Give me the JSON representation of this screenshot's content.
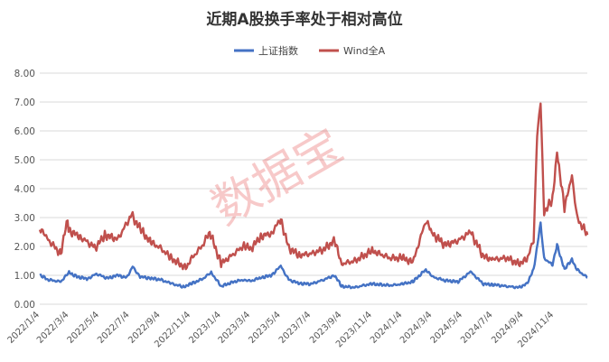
{
  "chart_data": {
    "type": "line",
    "title": "近期A股换手率处于相对高位",
    "xlabel": "",
    "ylabel": "",
    "ylim": [
      0,
      8
    ],
    "yticks": [
      "0.00",
      "1.00",
      "2.00",
      "3.00",
      "4.00",
      "5.00",
      "6.00",
      "7.00",
      "8.00"
    ],
    "x_ticks": [
      "2022/1/4",
      "2022/3/4",
      "2022/5/4",
      "2022/7/4",
      "2022/9/4",
      "2022/11/4",
      "2023/1/4",
      "2023/3/4",
      "2023/5/4",
      "2023/7/4",
      "2023/9/4",
      "2023/11/4",
      "2024/1/4",
      "2024/3/4",
      "2024/5/4",
      "2024/7/4",
      "2024/9/4",
      "2024/11/4"
    ],
    "x_range": [
      "2022/1/4",
      "2025/1/10"
    ],
    "grid": "horizontal",
    "legend": "top-center",
    "watermark": "数据宝",
    "series": [
      {
        "name": "上证指数",
        "color": "#4472c4",
        "points": [
          [
            "2022/1/4",
            1.02
          ],
          [
            "2022/1/20",
            0.85
          ],
          [
            "2022/2/15",
            0.78
          ],
          [
            "2022/3/4",
            1.1
          ],
          [
            "2022/3/20",
            0.95
          ],
          [
            "2022/4/10",
            0.88
          ],
          [
            "2022/4/28",
            1.05
          ],
          [
            "2022/5/20",
            0.9
          ],
          [
            "2022/6/10",
            1.0
          ],
          [
            "2022/6/28",
            0.92
          ],
          [
            "2022/7/10",
            1.3
          ],
          [
            "2022/7/25",
            0.95
          ],
          [
            "2022/8/15",
            0.9
          ],
          [
            "2022/9/4",
            0.85
          ],
          [
            "2022/9/25",
            0.72
          ],
          [
            "2022/10/20",
            0.6
          ],
          [
            "2022/11/4",
            0.7
          ],
          [
            "2022/11/28",
            0.88
          ],
          [
            "2022/12/15",
            1.1
          ],
          [
            "2023/1/4",
            0.62
          ],
          [
            "2023/1/30",
            0.78
          ],
          [
            "2023/2/20",
            0.85
          ],
          [
            "2023/3/4",
            0.8
          ],
          [
            "2023/3/25",
            0.92
          ],
          [
            "2023/4/15",
            1.0
          ],
          [
            "2023/5/4",
            1.32
          ],
          [
            "2023/5/20",
            0.85
          ],
          [
            "2023/6/10",
            0.72
          ],
          [
            "2023/7/4",
            0.7
          ],
          [
            "2023/7/30",
            0.85
          ],
          [
            "2023/8/20",
            1.0
          ],
          [
            "2023/9/4",
            0.62
          ],
          [
            "2023/9/30",
            0.58
          ],
          [
            "2023/10/20",
            0.66
          ],
          [
            "2023/11/4",
            0.7
          ],
          [
            "2023/12/10",
            0.65
          ],
          [
            "2024/1/4",
            0.7
          ],
          [
            "2024/1/25",
            0.78
          ],
          [
            "2024/2/20",
            1.2
          ],
          [
            "2024/3/4",
            0.95
          ],
          [
            "2024/3/30",
            0.82
          ],
          [
            "2024/4/25",
            0.78
          ],
          [
            "2024/5/20",
            1.12
          ],
          [
            "2024/6/15",
            0.7
          ],
          [
            "2024/7/4",
            0.68
          ],
          [
            "2024/8/1",
            0.62
          ],
          [
            "2024/8/25",
            0.58
          ],
          [
            "2024/9/10",
            0.7
          ],
          [
            "2024/9/24",
            1.2
          ],
          [
            "2024/10/8",
            2.8
          ],
          [
            "2024/10/15",
            1.6
          ],
          [
            "2024/11/1",
            1.35
          ],
          [
            "2024/11/10",
            2.05
          ],
          [
            "2024/11/25",
            1.2
          ],
          [
            "2024/12/10",
            1.55
          ],
          [
            "2024/12/20",
            1.2
          ],
          [
            "2025/1/10",
            0.92
          ]
        ]
      },
      {
        "name": "Wind全A",
        "color": "#c0504d",
        "points": [
          [
            "2022/1/4",
            2.65
          ],
          [
            "2022/1/15",
            2.35
          ],
          [
            "2022/2/15",
            1.75
          ],
          [
            "2022/3/1",
            2.95
          ],
          [
            "2022/3/4",
            2.55
          ],
          [
            "2022/3/25",
            2.35
          ],
          [
            "2022/4/26",
            1.95
          ],
          [
            "2022/5/15",
            2.4
          ],
          [
            "2022/6/10",
            2.25
          ],
          [
            "2022/7/8",
            3.1
          ],
          [
            "2022/7/25",
            2.6
          ],
          [
            "2022/8/15",
            2.15
          ],
          [
            "2022/9/4",
            1.95
          ],
          [
            "2022/9/25",
            1.6
          ],
          [
            "2022/10/25",
            1.25
          ],
          [
            "2022/11/4",
            1.55
          ],
          [
            "2022/11/28",
            2.05
          ],
          [
            "2022/12/12",
            2.5
          ],
          [
            "2023/1/4",
            1.4
          ],
          [
            "2023/1/30",
            1.75
          ],
          [
            "2023/2/20",
            2.05
          ],
          [
            "2023/3/4",
            1.9
          ],
          [
            "2023/3/25",
            2.35
          ],
          [
            "2023/4/15",
            2.45
          ],
          [
            "2023/5/4",
            2.95
          ],
          [
            "2023/5/20",
            1.95
          ],
          [
            "2023/6/10",
            1.7
          ],
          [
            "2023/7/4",
            1.75
          ],
          [
            "2023/7/30",
            1.9
          ],
          [
            "2023/8/20",
            2.2
          ],
          [
            "2023/9/4",
            1.4
          ],
          [
            "2023/9/30",
            1.5
          ],
          [
            "2023/10/20",
            1.7
          ],
          [
            "2023/11/4",
            1.85
          ],
          [
            "2023/12/10",
            1.6
          ],
          [
            "2024/1/4",
            1.6
          ],
          [
            "2024/1/25",
            1.45
          ],
          [
            "2024/2/20",
            2.9
          ],
          [
            "2024/3/4",
            2.45
          ],
          [
            "2024/3/30",
            2.05
          ],
          [
            "2024/4/25",
            2.2
          ],
          [
            "2024/5/20",
            2.5
          ],
          [
            "2024/6/15",
            1.65
          ],
          [
            "2024/7/4",
            1.55
          ],
          [
            "2024/8/1",
            1.6
          ],
          [
            "2024/8/25",
            1.4
          ],
          [
            "2024/9/10",
            1.55
          ],
          [
            "2024/9/24",
            2.2
          ],
          [
            "2024/10/1",
            5.9
          ],
          [
            "2024/10/8",
            7.05
          ],
          [
            "2024/10/15",
            3.2
          ],
          [
            "2024/11/1",
            3.6
          ],
          [
            "2024/11/10",
            5.3
          ],
          [
            "2024/11/25",
            3.3
          ],
          [
            "2024/12/10",
            4.5
          ],
          [
            "2024/12/20",
            3.0
          ],
          [
            "2025/1/10",
            2.4
          ]
        ]
      }
    ]
  }
}
